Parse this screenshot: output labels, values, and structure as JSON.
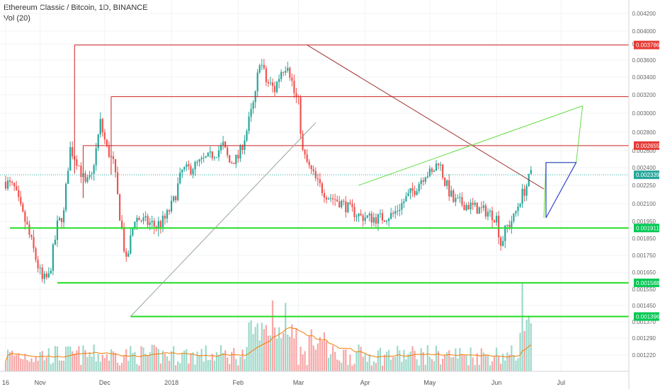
{
  "header": {
    "title": "Ethereum Classic / Bitcoin, 1D, BINANCE",
    "indicator": "Vol (20)"
  },
  "chart_data": {
    "type": "candlestick",
    "x_tick_labels": [
      "16",
      "Nov",
      "Dec",
      "2018",
      "Feb",
      "Mar",
      "Apr",
      "May",
      "Jun",
      "Jul"
    ],
    "y_tick_labels": [
      "0.004200",
      "0.004000",
      "0.003800",
      "0.003600",
      "0.003400",
      "0.003200",
      "0.003000",
      "0.002800",
      "0.002600",
      "0.002400",
      "0.002250",
      "0.002100",
      "0.001950",
      "0.001850",
      "0.001750",
      "0.001650",
      "0.001550",
      "0.001450",
      "0.001370",
      "0.001290",
      "0.001220"
    ],
    "price_labels": [
      {
        "text": "0.003786",
        "color": "#e53935"
      },
      {
        "text": "0.002655",
        "color": "#e53935"
      },
      {
        "text": "0.002339",
        "color": "#26a69a"
      },
      {
        "text": "0.001911",
        "color": "#00c853"
      },
      {
        "text": "0.001588",
        "color": "#00c853"
      },
      {
        "text": "0.001396",
        "color": "#00c853"
      }
    ],
    "resistance_levels": [
      {
        "from": "Oct 2017",
        "value": 0.003786
      },
      {
        "from": "Dec 2017",
        "value": 0.00318
      },
      {
        "from": "Oct 2017",
        "value": 0.002655
      }
    ],
    "support_levels": [
      0.001911,
      0.001588,
      0.001396
    ],
    "current_price": 0.002339,
    "trend_lines": [
      {
        "name": "uptrend",
        "from": [
          "Dec 2017",
          0.001396
        ],
        "to": [
          "Feb 2018",
          0.0029
        ]
      },
      {
        "name": "downtrend",
        "from": [
          "Feb 2018",
          0.003786
        ],
        "to": [
          "Jun 2018",
          0.0022
        ]
      },
      {
        "name": "rising-projection",
        "from": [
          "Mar 2018",
          0.00225
        ],
        "to": [
          "May 2018",
          0.00262
        ]
      }
    ],
    "projection": {
      "levels": [
        0.00246,
        0.00318
      ],
      "color": "#66dd44"
    },
    "triangle_color": "#3344cc",
    "colors": {
      "up": "#26a69a",
      "down": "#ef5350",
      "up_volume": "#9cd9c9",
      "down_volume": "#f7a6a6",
      "volume_ma": "#f57c00",
      "resistance": "#cc2222",
      "support": "#22dd22",
      "downtrend": "#a03030",
      "uptrend": "#9aa89a"
    }
  }
}
